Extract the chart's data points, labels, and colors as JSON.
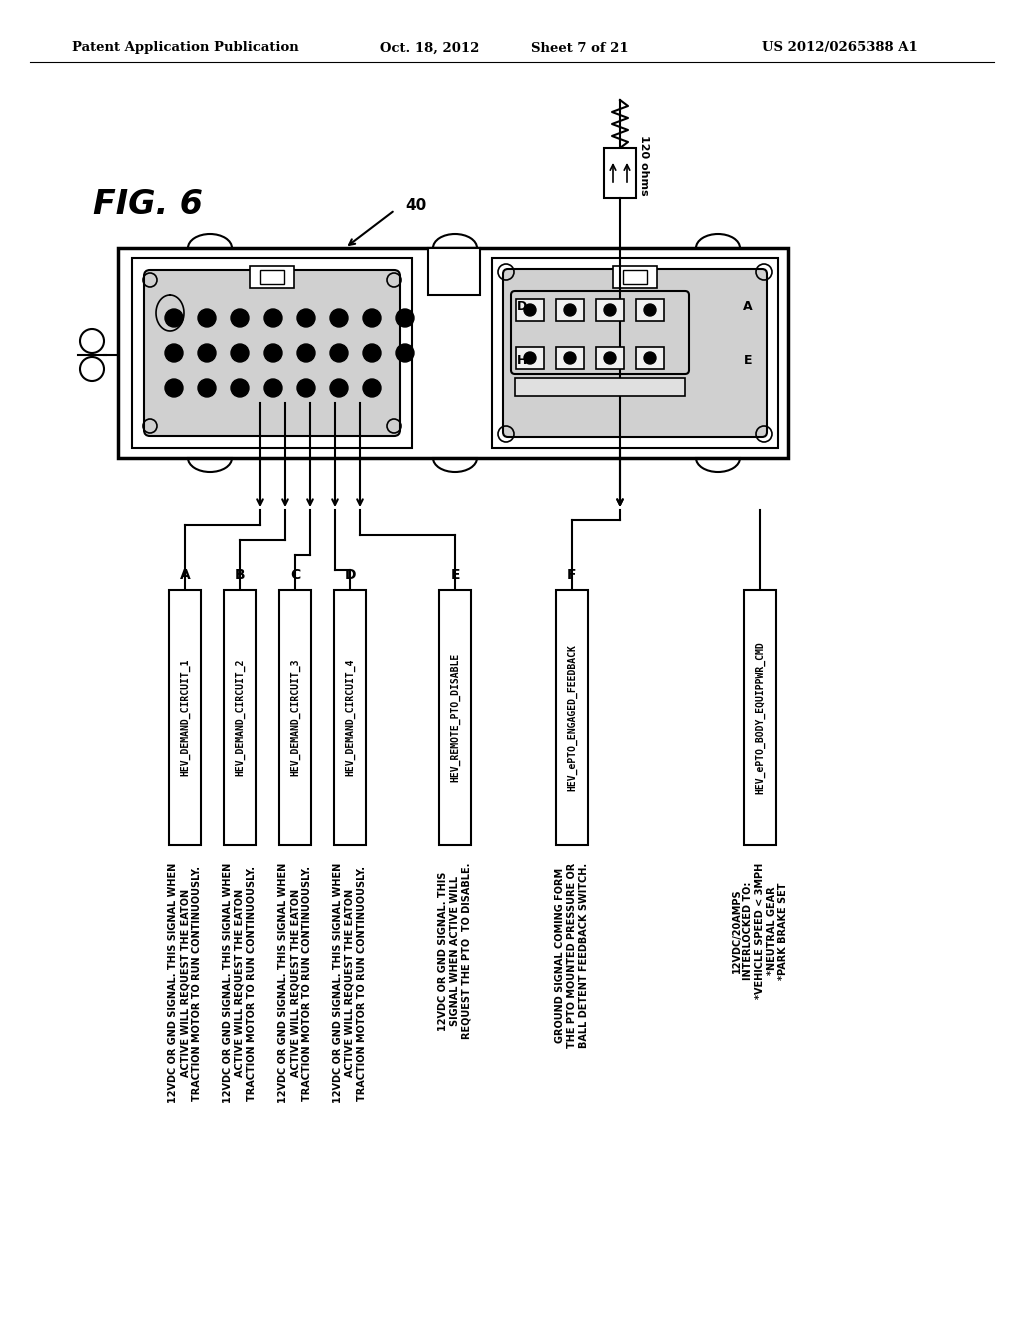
{
  "header_left": "Patent Application Publication",
  "header_mid": "Oct. 18, 2012  Sheet 7 of 21",
  "header_right": "US 2012/0265388 A1",
  "fig_label": "FIG. 6",
  "arrow_label": "40",
  "resistor_label": "120 ohms",
  "bg_color": "#ffffff",
  "signal_labels": [
    "HEV_DEMAND_CIRCUIT_1",
    "HEV_DEMAND_CIRCUIT_2",
    "HEV_DEMAND_CIRCUIT_3",
    "HEV_DEMAND_CIRCUIT_4",
    "HEV_REMOTE_PTO_DISABLE",
    "HEV_ePTO_ENGAGED_FEEDBACK",
    "HEV_ePTO_BODY_EQUIPPWR_CMD"
  ],
  "connector_letters": [
    "A",
    "B",
    "C",
    "D",
    "E",
    "F"
  ],
  "descriptions": [
    "12VDC OR GND SIGNAL. THIS SIGNAL WHEN\nACTIVE WILL REQUEST THE EATON\nTRACTION MOTOR TO RUN CONTINUOUSLY.",
    "12VDC OR GND SIGNAL. THIS SIGNAL WHEN\nACTIVE WILL REQUEST THE EATON\nTRACTION MOTOR TO RUN CONTINUOUSLY.",
    "12VDC OR GND SIGNAL. THIS SIGNAL WHEN\nACTIVE WILL REQUEST THE EATON\nTRACTION MOTOR TO RUN CONTINUOUSLY.",
    "12VDC OR GND SIGNAL. THIS SIGNAL WHEN\nACTIVE WILL REQUEST THE EATON\nTRACTION MOTOR TO RUN CONTINUOUSLY.",
    "12VDC OR GND SIGNAL. THIS\nSIGNAL WHEN ACTIVE WILL\nREQUEST THE PTO  TO DISABLE.",
    "GROUND SIGNAL COMING FORM\nTHE PTO MOUNTED PRESSURE OR\nBALL DETENT FEEDBACK SWITCH.",
    "12VDC/20AMPS\nINTERLOCKED TO:\n*VEHICLE SPEED < 3MPH\n*NEUTRAL GEAR\n*PARK BRAKE SET"
  ]
}
